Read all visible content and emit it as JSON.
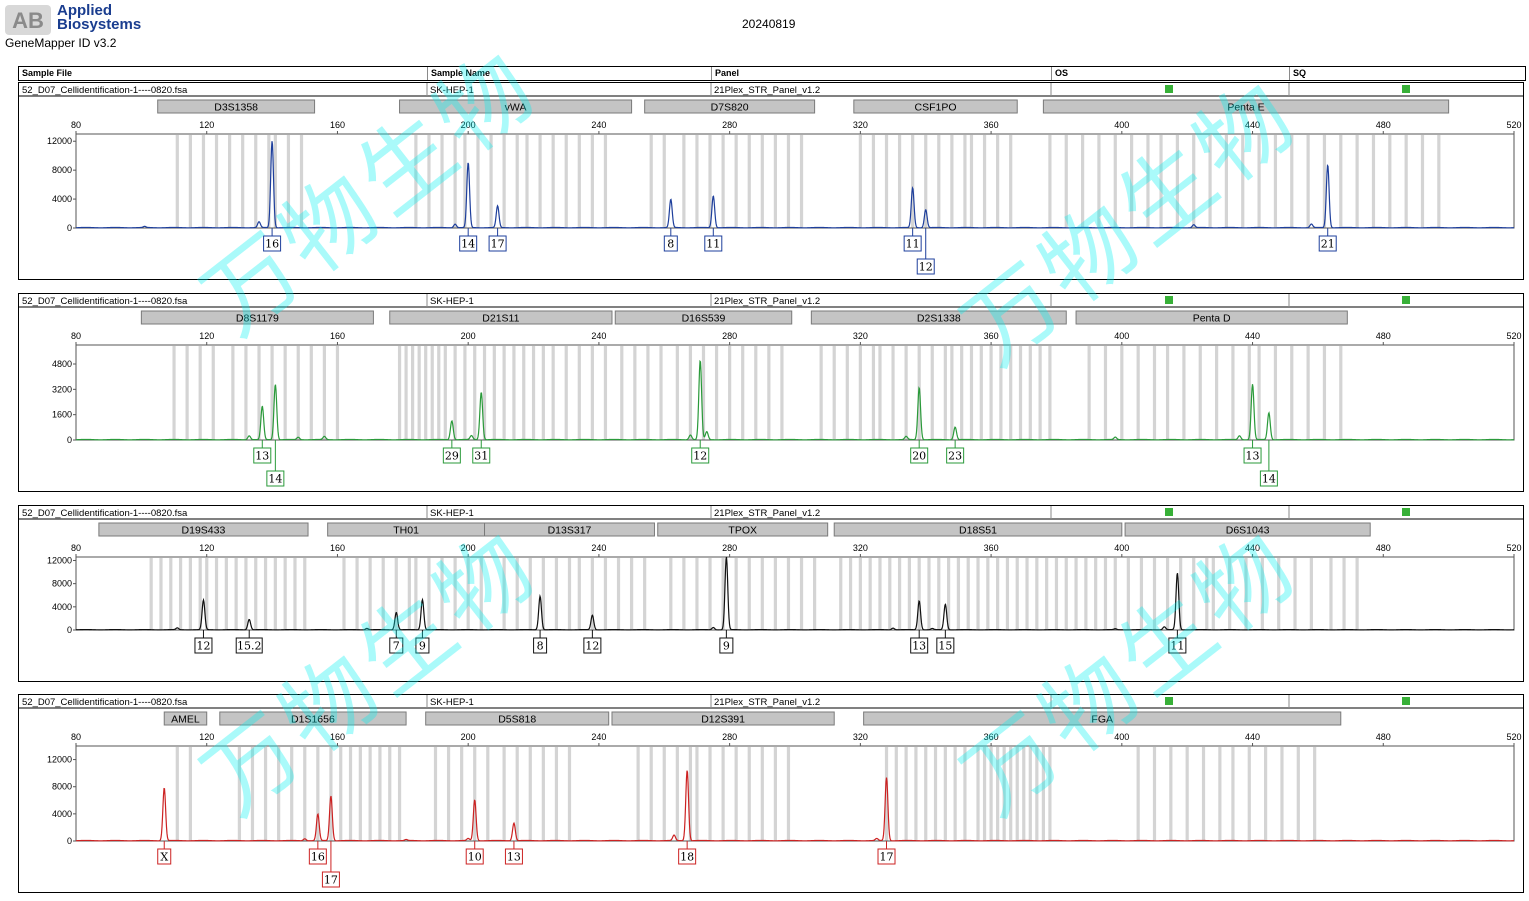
{
  "header": {
    "brand_line1": "Applied",
    "brand_line2": "Biosystems",
    "brand_mark": "AB",
    "app_version": "GeneMapper ID v3.2",
    "run_date": "20240819"
  },
  "table_header": {
    "sample_file": "Sample File",
    "sample_name": "Sample Name",
    "panel": "Panel",
    "os": "OS",
    "sq": "SQ"
  },
  "watermark": {
    "text": "万物生物"
  },
  "colors": {
    "blue": "#1e3f9c",
    "green": "#2a9a3a",
    "black": "#111111",
    "red": "#cc2222",
    "status": "#38b038",
    "marker_box": "#c4c4c4",
    "bin": "#d4d4d4"
  },
  "chart_data": [
    {
      "type": "line",
      "dye": "blue",
      "sample_file": "52_D07_Cellidentification-1----0820.fsa",
      "sample_name": "SK-HEP-1",
      "panel": "21Plex_STR_Panel_v1.2",
      "os_status": "pass",
      "sq_status": "pass",
      "xlim": [
        80,
        520
      ],
      "x_ticks": [
        80,
        120,
        160,
        200,
        240,
        280,
        320,
        360,
        400,
        440,
        480,
        520
      ],
      "ylim": [
        0,
        13000
      ],
      "y_ticks": [
        0,
        4000,
        8000,
        12000
      ],
      "markers": [
        {
          "name": "D3S1358",
          "start": 105,
          "end": 153
        },
        {
          "name": "vWA",
          "start": 179,
          "end": 250
        },
        {
          "name": "D7S820",
          "start": 254,
          "end": 306
        },
        {
          "name": "CSF1PO",
          "start": 318,
          "end": 368
        },
        {
          "name": "Penta E",
          "start": 376,
          "end": 500
        }
      ],
      "bins": [
        [
          111,
          124,
          4
        ],
        [
          127,
          140,
          4
        ],
        [
          141,
          152,
          4
        ],
        [
          184,
          197,
          4
        ],
        [
          199,
          216,
          4
        ],
        [
          218,
          245,
          4
        ],
        [
          256,
          262,
          4
        ],
        [
          266,
          278,
          4
        ],
        [
          282,
          302,
          4
        ],
        [
          320,
          352,
          4
        ],
        [
          354,
          366,
          4
        ],
        [
          378,
          410,
          5
        ],
        [
          412,
          450,
          5
        ],
        [
          452,
          500,
          5
        ]
      ],
      "peaks": [
        {
          "x": 136,
          "h": 800
        },
        {
          "x": 140,
          "h": 12000
        },
        {
          "x": 196,
          "h": 500
        },
        {
          "x": 200,
          "h": 9000
        },
        {
          "x": 209,
          "h": 3000
        },
        {
          "x": 262,
          "h": 3900
        },
        {
          "x": 275,
          "h": 4400
        },
        {
          "x": 336,
          "h": 5500
        },
        {
          "x": 340,
          "h": 2500
        },
        {
          "x": 101,
          "h": 150
        },
        {
          "x": 422,
          "h": 400
        },
        {
          "x": 458,
          "h": 500
        },
        {
          "x": 463,
          "h": 8700
        }
      ],
      "allele_labels": [
        {
          "x": 140,
          "label": "16",
          "row": 0
        },
        {
          "x": 200,
          "label": "14",
          "row": 0
        },
        {
          "x": 209,
          "label": "17",
          "row": 0
        },
        {
          "x": 262,
          "label": "8",
          "row": 0
        },
        {
          "x": 275,
          "label": "11",
          "row": 0
        },
        {
          "x": 336,
          "label": "11",
          "row": 0
        },
        {
          "x": 340,
          "label": "12",
          "row": 1
        },
        {
          "x": 463,
          "label": "21",
          "row": 0
        }
      ]
    },
    {
      "type": "line",
      "dye": "green",
      "sample_file": "52_D07_Cellidentification-1----0820.fsa",
      "sample_name": "SK-HEP-1",
      "panel": "21Plex_STR_Panel_v1.2",
      "os_status": "pass",
      "sq_status": "pass",
      "xlim": [
        80,
        520
      ],
      "x_ticks": [
        80,
        120,
        160,
        200,
        240,
        280,
        320,
        360,
        400,
        440,
        480,
        520
      ],
      "ylim": [
        0,
        6000
      ],
      "y_ticks": [
        0,
        1600,
        3200,
        4800
      ],
      "markers": [
        {
          "name": "D8S1179",
          "start": 100,
          "end": 171
        },
        {
          "name": "D21S11",
          "start": 176,
          "end": 244
        },
        {
          "name": "D16S539",
          "start": 245,
          "end": 299
        },
        {
          "name": "D2S1338",
          "start": 305,
          "end": 383
        },
        {
          "name": "Penta D",
          "start": 386,
          "end": 469
        }
      ],
      "bins": [
        [
          110,
          124,
          4
        ],
        [
          128,
          160,
          4
        ],
        [
          179,
          192,
          2
        ],
        [
          193,
          224,
          3
        ],
        [
          226,
          244,
          4
        ],
        [
          247,
          262,
          4
        ],
        [
          264,
          298,
          4
        ],
        [
          308,
          324,
          4
        ],
        [
          326,
          346,
          4
        ],
        [
          348,
          378,
          3
        ],
        [
          390,
          412,
          5
        ],
        [
          414,
          440,
          5
        ],
        [
          442,
          470,
          5
        ]
      ],
      "peaks": [
        {
          "x": 137,
          "h": 2100
        },
        {
          "x": 141,
          "h": 3500
        },
        {
          "x": 133,
          "h": 250
        },
        {
          "x": 148,
          "h": 150
        },
        {
          "x": 156,
          "h": 200
        },
        {
          "x": 195,
          "h": 1200
        },
        {
          "x": 204,
          "h": 3000
        },
        {
          "x": 201,
          "h": 250
        },
        {
          "x": 271,
          "h": 5000
        },
        {
          "x": 268,
          "h": 300
        },
        {
          "x": 273,
          "h": 500
        },
        {
          "x": 338,
          "h": 3300
        },
        {
          "x": 334,
          "h": 200
        },
        {
          "x": 349,
          "h": 800
        },
        {
          "x": 398,
          "h": 150
        },
        {
          "x": 440,
          "h": 3500
        },
        {
          "x": 445,
          "h": 1700
        },
        {
          "x": 436,
          "h": 250
        }
      ],
      "allele_labels": [
        {
          "x": 137,
          "label": "13",
          "row": 0
        },
        {
          "x": 141,
          "label": "14",
          "row": 1
        },
        {
          "x": 195,
          "label": "29",
          "row": 0
        },
        {
          "x": 204,
          "label": "31",
          "row": 0
        },
        {
          "x": 271,
          "label": "12",
          "row": 0
        },
        {
          "x": 338,
          "label": "20",
          "row": 0
        },
        {
          "x": 349,
          "label": "23",
          "row": 0
        },
        {
          "x": 440,
          "label": "13",
          "row": 0
        },
        {
          "x": 445,
          "label": "14",
          "row": 1
        }
      ]
    },
    {
      "type": "line",
      "dye": "black",
      "sample_file": "52_D07_Cellidentification-1----0820.fsa",
      "sample_name": "SK-HEP-1",
      "panel": "21Plex_STR_Panel_v1.2",
      "os_status": "pass",
      "sq_status": "pass",
      "xlim": [
        80,
        520
      ],
      "x_ticks": [
        80,
        120,
        160,
        200,
        240,
        280,
        320,
        360,
        400,
        440,
        480,
        520
      ],
      "ylim": [
        0,
        12600
      ],
      "y_ticks": [
        0,
        4000,
        8000,
        12000
      ],
      "markers": [
        {
          "name": "D19S433",
          "start": 87,
          "end": 151
        },
        {
          "name": "TH01",
          "start": 157,
          "end": 205
        },
        {
          "name": "D13S317",
          "start": 205,
          "end": 257
        },
        {
          "name": "TPOX",
          "start": 258,
          "end": 310
        },
        {
          "name": "D18S51",
          "start": 312,
          "end": 400
        },
        {
          "name": "D6S1043",
          "start": 401,
          "end": 476
        }
      ],
      "bins": [
        [
          103,
          118,
          3
        ],
        [
          120,
          151,
          3
        ],
        [
          162,
          182,
          4
        ],
        [
          184,
          205,
          4
        ],
        [
          211,
          232,
          4
        ],
        [
          234,
          256,
          4
        ],
        [
          262,
          280,
          4
        ],
        [
          282,
          308,
          4
        ],
        [
          314,
          354,
          3
        ],
        [
          356,
          398,
          3
        ],
        [
          402,
          426,
          4
        ],
        [
          428,
          462,
          5
        ],
        [
          464,
          474,
          4
        ]
      ],
      "peaks": [
        {
          "x": 119,
          "h": 5100
        },
        {
          "x": 133,
          "h": 1800
        },
        {
          "x": 111,
          "h": 300
        },
        {
          "x": 178,
          "h": 3000
        },
        {
          "x": 186,
          "h": 5200
        },
        {
          "x": 169,
          "h": 250
        },
        {
          "x": 222,
          "h": 5800
        },
        {
          "x": 238,
          "h": 2500
        },
        {
          "x": 279,
          "h": 12600
        },
        {
          "x": 275,
          "h": 400
        },
        {
          "x": 338,
          "h": 5000
        },
        {
          "x": 346,
          "h": 4400
        },
        {
          "x": 330,
          "h": 300
        },
        {
          "x": 342,
          "h": 200
        },
        {
          "x": 398,
          "h": 150
        },
        {
          "x": 417,
          "h": 9800
        },
        {
          "x": 413,
          "h": 500
        }
      ],
      "allele_labels": [
        {
          "x": 119,
          "label": "12",
          "row": 0
        },
        {
          "x": 133,
          "label": "15.2",
          "row": 0
        },
        {
          "x": 178,
          "label": "7",
          "row": 0
        },
        {
          "x": 186,
          "label": "9",
          "row": 0
        },
        {
          "x": 222,
          "label": "8",
          "row": 0
        },
        {
          "x": 238,
          "label": "12",
          "row": 0
        },
        {
          "x": 279,
          "label": "9",
          "row": 0
        },
        {
          "x": 338,
          "label": "13",
          "row": 0
        },
        {
          "x": 346,
          "label": "15",
          "row": 0
        },
        {
          "x": 417,
          "label": "11",
          "row": 0
        }
      ]
    },
    {
      "type": "line",
      "dye": "red",
      "sample_file": "52_D07_Cellidentification-1----0820.fsa",
      "sample_name": "SK-HEP-1",
      "panel": "21Plex_STR_Panel_v1.2",
      "os_status": "pass",
      "sq_status": "pass",
      "xlim": [
        80,
        520
      ],
      "x_ticks": [
        80,
        120,
        160,
        200,
        240,
        280,
        320,
        360,
        400,
        440,
        480,
        520
      ],
      "ylim": [
        0,
        14000
      ],
      "y_ticks": [
        0,
        4000,
        8000,
        12000
      ],
      "markers": [
        {
          "name": "AMEL",
          "start": 107,
          "end": 120
        },
        {
          "name": "D1S1656",
          "start": 124,
          "end": 181
        },
        {
          "name": "D5S818",
          "start": 187,
          "end": 243
        },
        {
          "name": "D12S391",
          "start": 244,
          "end": 312
        },
        {
          "name": "FGA",
          "start": 321,
          "end": 467
        }
      ],
      "bins": [
        [
          111,
          118,
          4
        ],
        [
          130,
          156,
          4
        ],
        [
          158,
          180,
          3
        ],
        [
          190,
          209,
          4
        ],
        [
          211,
          233,
          4
        ],
        [
          252,
          268,
          4
        ],
        [
          270,
          300,
          4
        ],
        [
          328,
          354,
          3
        ],
        [
          356,
          378,
          2
        ],
        [
          405,
          432,
          5
        ],
        [
          434,
          460,
          5
        ]
      ],
      "peaks": [
        {
          "x": 107,
          "h": 7800
        },
        {
          "x": 154,
          "h": 3900
        },
        {
          "x": 158,
          "h": 6600
        },
        {
          "x": 150,
          "h": 300
        },
        {
          "x": 181,
          "h": 150
        },
        {
          "x": 202,
          "h": 6000
        },
        {
          "x": 200,
          "h": 300
        },
        {
          "x": 214,
          "h": 2600
        },
        {
          "x": 267,
          "h": 10400
        },
        {
          "x": 263,
          "h": 800
        },
        {
          "x": 328,
          "h": 9300
        },
        {
          "x": 325,
          "h": 300
        }
      ],
      "allele_labels": [
        {
          "x": 107,
          "label": "X",
          "row": 0
        },
        {
          "x": 154,
          "label": "16",
          "row": 0
        },
        {
          "x": 158,
          "label": "17",
          "row": 1
        },
        {
          "x": 202,
          "label": "10",
          "row": 0
        },
        {
          "x": 214,
          "label": "13",
          "row": 0
        },
        {
          "x": 267,
          "label": "18",
          "row": 0
        },
        {
          "x": 328,
          "label": "17",
          "row": 0
        }
      ]
    }
  ]
}
